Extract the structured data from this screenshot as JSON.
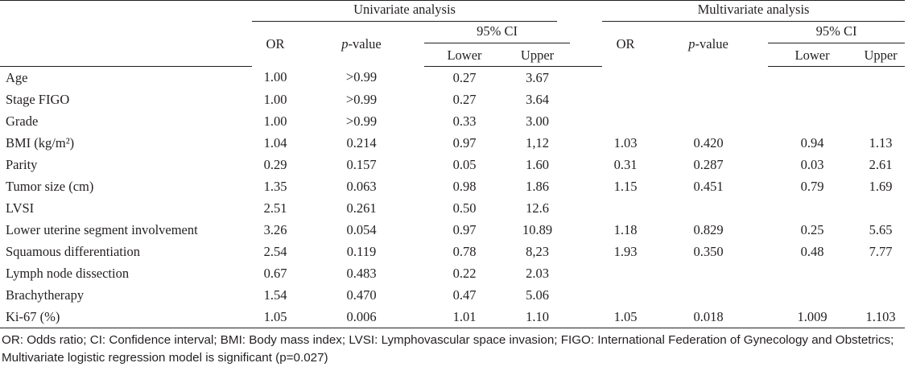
{
  "header": {
    "univariate": "Univariate analysis",
    "multivariate": "Multivariate analysis",
    "or": "OR",
    "p_italic": "p",
    "p_rest": "-value",
    "ci": "95% CI",
    "lower": "Lower",
    "upper": "Upper"
  },
  "rows": [
    {
      "label": "Age",
      "u_or": "1.00",
      "u_p": ">0.99",
      "u_lo": "0.27",
      "u_hi": "3.67",
      "m_or": "",
      "m_p": "",
      "m_lo": "",
      "m_hi": ""
    },
    {
      "label": "Stage FIGO",
      "u_or": "1.00",
      "u_p": ">0.99",
      "u_lo": "0.27",
      "u_hi": "3.64",
      "m_or": "",
      "m_p": "",
      "m_lo": "",
      "m_hi": ""
    },
    {
      "label": "Grade",
      "u_or": "1.00",
      "u_p": ">0.99",
      "u_lo": "0.33",
      "u_hi": "3.00",
      "m_or": "",
      "m_p": "",
      "m_lo": "",
      "m_hi": ""
    },
    {
      "label": "BMI (kg/m²)",
      "u_or": "1.04",
      "u_p": "0.214",
      "u_lo": "0.97",
      "u_hi": "1,12",
      "m_or": "1.03",
      "m_p": "0.420",
      "m_lo": "0.94",
      "m_hi": "1.13"
    },
    {
      "label": "Parity",
      "u_or": "0.29",
      "u_p": "0.157",
      "u_lo": "0.05",
      "u_hi": "1.60",
      "m_or": "0.31",
      "m_p": "0.287",
      "m_lo": "0.03",
      "m_hi": "2.61"
    },
    {
      "label": "Tumor size (cm)",
      "u_or": "1.35",
      "u_p": "0.063",
      "u_lo": "0.98",
      "u_hi": "1.86",
      "m_or": "1.15",
      "m_p": "0.451",
      "m_lo": "0.79",
      "m_hi": "1.69"
    },
    {
      "label": "LVSI",
      "u_or": "2.51",
      "u_p": "0.261",
      "u_lo": "0.50",
      "u_hi": "12.6",
      "m_or": "",
      "m_p": "",
      "m_lo": "",
      "m_hi": ""
    },
    {
      "label": "Lower uterine segment involvement",
      "u_or": "3.26",
      "u_p": "0.054",
      "u_lo": "0.97",
      "u_hi": "10.89",
      "m_or": "1.18",
      "m_p": "0.829",
      "m_lo": "0.25",
      "m_hi": "5.65"
    },
    {
      "label": "Squamous differentiation",
      "u_or": "2.54",
      "u_p": "0.119",
      "u_lo": "0.78",
      "u_hi": "8,23",
      "m_or": "1.93",
      "m_p": "0.350",
      "m_lo": "0.48",
      "m_hi": "7.77"
    },
    {
      "label": "Lymph node dissection",
      "u_or": "0.67",
      "u_p": "0.483",
      "u_lo": "0.22",
      "u_hi": "2.03",
      "m_or": "",
      "m_p": "",
      "m_lo": "",
      "m_hi": ""
    },
    {
      "label": "Brachytherapy",
      "u_or": "1.54",
      "u_p": "0.470",
      "u_lo": "0.47",
      "u_hi": "5.06",
      "m_or": "",
      "m_p": "",
      "m_lo": "",
      "m_hi": ""
    },
    {
      "label": "Ki-67 (%)",
      "u_or": "1.05",
      "u_p": "0.006",
      "u_lo": "1.01",
      "u_hi": "1.10",
      "m_or": "1.05",
      "m_p": "0.018",
      "m_lo": "1.009",
      "m_hi": "1.103"
    }
  ],
  "footnote": "OR: Odds ratio; CI: Confidence interval; BMI: Body mass index; LVSI: Lymphovascular space invasion; FIGO: International Federation of Gynecology and Obstetrics; Multivariate logistic regression model is significant (p=0.027)"
}
